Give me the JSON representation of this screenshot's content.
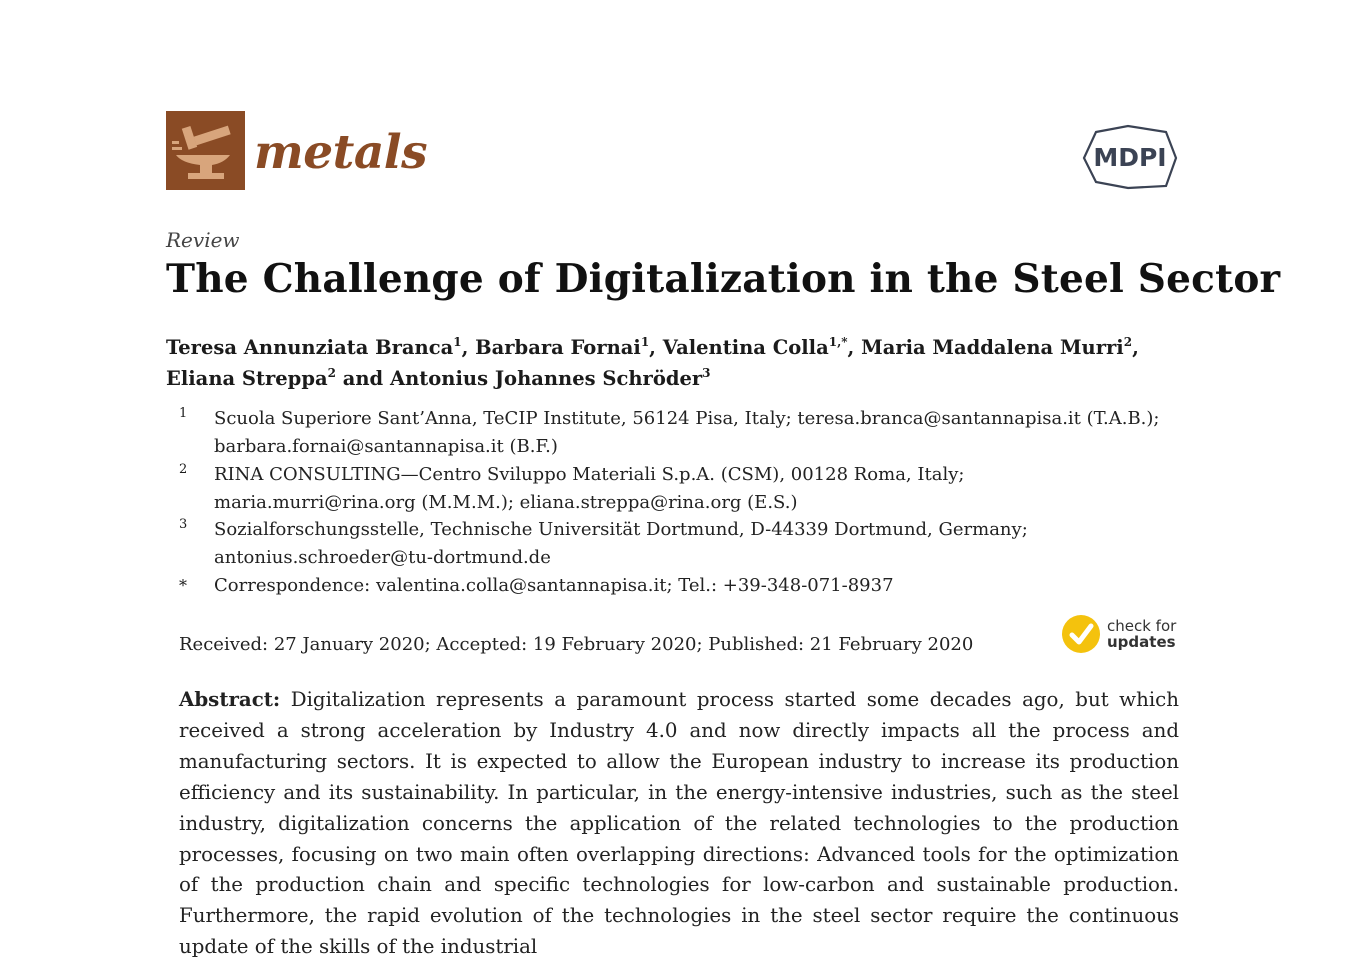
{
  "header": {
    "journal_name": "metals",
    "publisher": "MDPI"
  },
  "article": {
    "type": "Review",
    "title": "The Challenge of Digitalization in the Steel Sector"
  },
  "authors": [
    {
      "name": "Teresa Annunziata Branca",
      "aff": "1"
    },
    {
      "name": "Barbara Fornai",
      "aff": "1"
    },
    {
      "name": "Valentina Colla",
      "aff": "1,*"
    },
    {
      "name": "Maria Maddalena Murri",
      "aff": "2"
    },
    {
      "name": "Eliana Streppa",
      "aff": "2"
    },
    {
      "name": "Antonius Johannes Schröder",
      "aff": "3"
    }
  ],
  "author_separators": [
    ", ",
    ", ",
    ", ",
    ",",
    " and "
  ],
  "affiliations": [
    {
      "mark": "1",
      "lines": [
        "Scuola Superiore Sant’Anna, TeCIP Institute, 56124 Pisa, Italy; teresa.branca@santannapisa.it (T.A.B.);",
        "barbara.fornai@santannapisa.it (B.F.)"
      ]
    },
    {
      "mark": "2",
      "lines": [
        "RINA CONSULTING—Centro Sviluppo Materiali S.p.A. (CSM), 00128 Roma, Italy;",
        "maria.murri@rina.org (M.M.M.); eliana.streppa@rina.org (E.S.)"
      ]
    },
    {
      "mark": "3",
      "lines": [
        "Sozialforschungsstelle, Technische Universität Dortmund, D-44339 Dortmund, Germany;",
        "antonius.schroeder@tu-dortmund.de"
      ]
    },
    {
      "mark": "*",
      "lines": [
        "Correspondence: valentina.colla@santannapisa.it; Tel.: +39-348-071-8937"
      ]
    }
  ],
  "dates": "Received: 27 January 2020; Accepted: 19 February 2020; Published: 21 February 2020",
  "check_updates": {
    "line1": "check for",
    "line2": "updates"
  },
  "abstract": {
    "label": "Abstract:",
    "text": "Digitalization represents a paramount process started some decades ago, but which received a strong acceleration by Industry 4.0 and now directly impacts all the process and manufacturing sectors. It is expected to allow the European industry to increase its production efficiency and its sustainability. In particular, in the energy-intensive industries, such as the steel industry, digitalization concerns the application of the related technologies to the production processes, focusing on two main often overlapping directions: Advanced tools for the optimization of the production chain and specific technologies for low-carbon and sustainable production. Furthermore, the rapid evolution of the technologies in the steel sector require the continuous update of the skills of the industrial"
  },
  "colors": {
    "journal_brown": "#8a4b25",
    "mdpi_blue": "#3b4354",
    "check_yellow": "#f4c20d"
  }
}
